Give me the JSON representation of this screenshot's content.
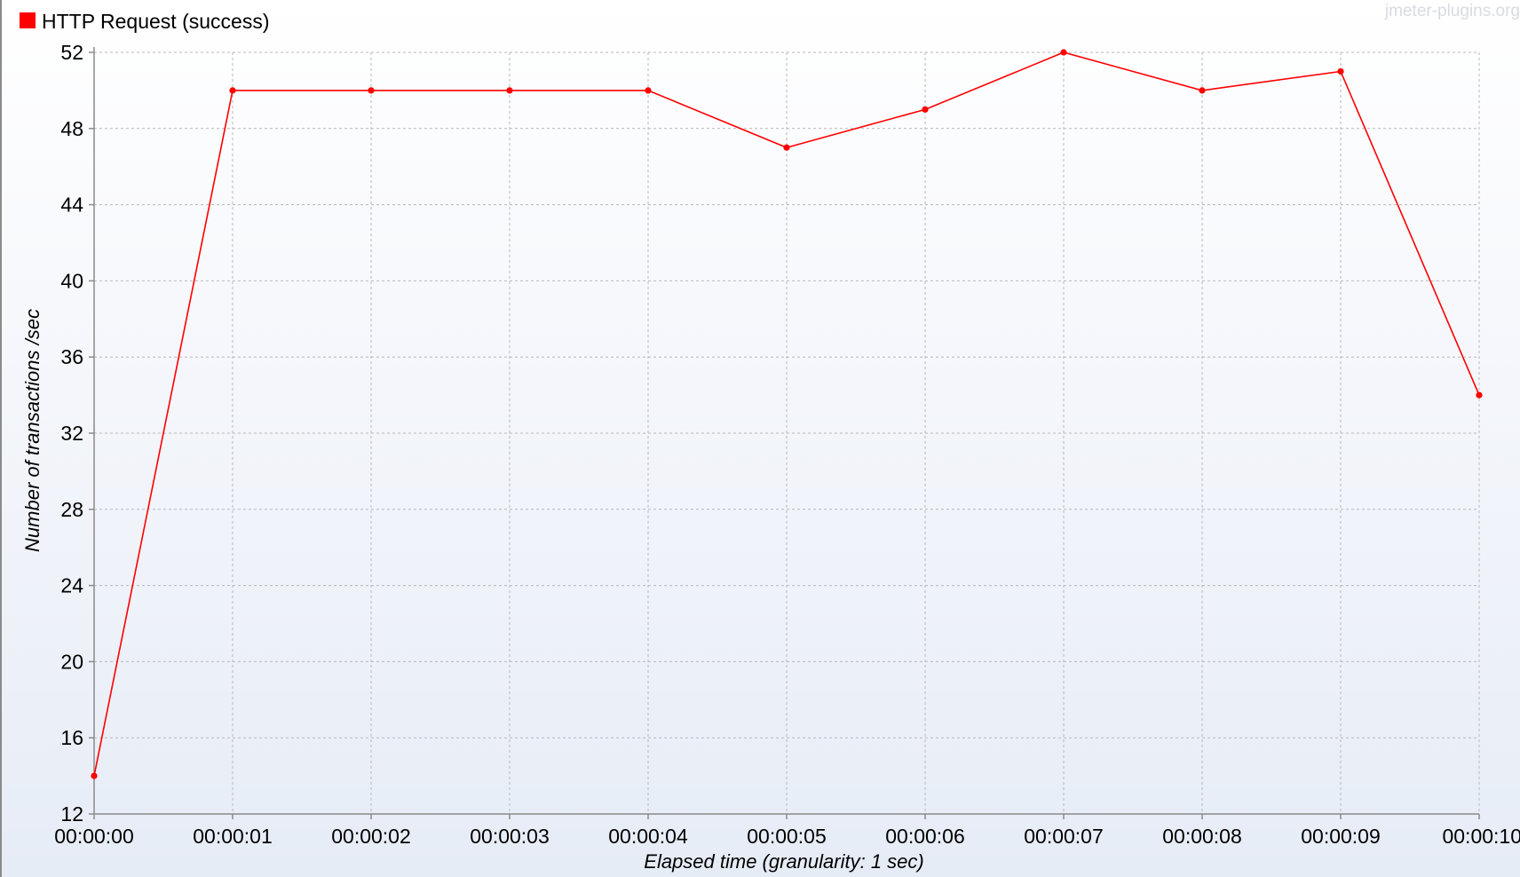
{
  "watermark": "jmeter-plugins.org",
  "colors": {
    "series": "#ff0000",
    "grid": "#b8b8b8",
    "axis": "#8a8a8a"
  },
  "chart_data": {
    "type": "line",
    "title": "",
    "xlabel": "Elapsed time (granularity: 1 sec)",
    "ylabel": "Number of transactions /sec",
    "ylim": [
      12,
      52
    ],
    "yticks": [
      12,
      16,
      20,
      24,
      28,
      32,
      36,
      40,
      44,
      48,
      52
    ],
    "categories": [
      "00:00:00",
      "00:00:01",
      "00:00:02",
      "00:00:03",
      "00:00:04",
      "00:00:05",
      "00:00:06",
      "00:00:07",
      "00:00:08",
      "00:00:09",
      "00:00:10"
    ],
    "grid": true,
    "legend": "top-left",
    "series": [
      {
        "name": "HTTP Request (success)",
        "values": [
          14,
          50,
          50,
          50,
          50,
          47,
          49,
          52,
          50,
          51,
          34
        ]
      }
    ]
  }
}
